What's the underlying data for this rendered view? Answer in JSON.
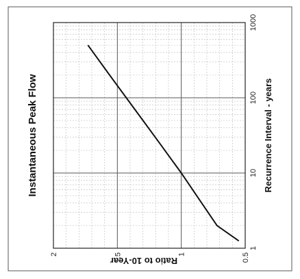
{
  "chart_data": {
    "type": "line",
    "title": "Instantaneous Peak Flow",
    "xlabel": "Recurrence Interval  -  years",
    "ylabel": "Ratio to 10-Year",
    "x_scale": "log",
    "xlim": [
      1,
      1000
    ],
    "ylim": [
      0.5,
      2
    ],
    "x_ticks": [
      "1",
      "10",
      "100",
      "1000"
    ],
    "y_ticks": [
      "0.5",
      "1",
      "1.5",
      "2"
    ],
    "grid": true,
    "series": [
      {
        "color": "#111111",
        "x": [
          1.25,
          2,
          5,
          10,
          25,
          50,
          100,
          200,
          500
        ],
        "y": [
          0.55,
          0.72,
          0.88,
          1.0,
          1.17,
          1.3,
          1.43,
          1.56,
          1.73
        ]
      }
    ]
  },
  "colors": {
    "frame": "#222222",
    "major_grid": "#555555",
    "minor_grid": "#b8b8b8",
    "line": "#111111"
  }
}
